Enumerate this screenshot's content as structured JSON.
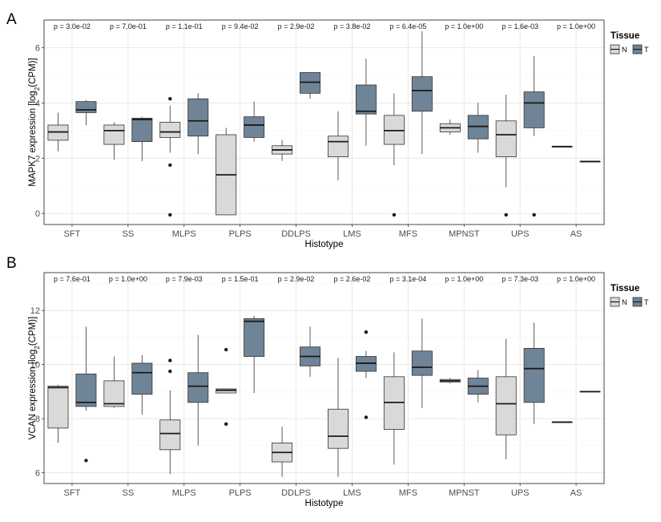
{
  "chart_data": [
    {
      "type": "boxplot",
      "panel_label": "A",
      "xlabel": "Histotype",
      "ylabel": "MAPK7 expression [log2(CPM)]",
      "ylabel_main": "MAPK7 expression [log",
      "ylabel_sub": "2",
      "ylabel_tail": "(CPM)]",
      "ylim": [
        -0.4,
        7.0
      ],
      "yticks": [
        0,
        2,
        4,
        6
      ],
      "ytick_labels": [
        "0",
        "2",
        "4",
        "6"
      ],
      "grid": true,
      "legend": {
        "title": "Tissue",
        "position": "top-right",
        "entries": [
          "N",
          "T"
        ]
      },
      "categories": [
        "SFT",
        "SS",
        "MLPS",
        "PLPS",
        "DDLPS",
        "LMS",
        "MFS",
        "MPNST",
        "UPS",
        "AS"
      ],
      "pvalues": [
        "p = 3.0e-02",
        "p = 7.0e-01",
        "p = 1.1e-01",
        "p = 9.4e-02",
        "p = 2.9e-02",
        "p = 3.8e-02",
        "p = 6.4e-05",
        "p = 1.0e+00",
        "p = 1.6e-03",
        "p = 1.0e+00"
      ],
      "series": [
        {
          "name": "N",
          "color": "#d9d9d9",
          "boxes": [
            {
              "low": 2.25,
              "q1": 2.65,
              "median": 2.95,
              "q3": 3.2,
              "high": 3.65,
              "outliers": []
            },
            {
              "low": 1.95,
              "q1": 2.5,
              "median": 3.0,
              "q3": 3.2,
              "high": 3.3,
              "outliers": []
            },
            {
              "low": 2.2,
              "q1": 2.75,
              "median": 2.95,
              "q3": 3.3,
              "high": 3.9,
              "outliers": [
                4.15,
                1.75,
                -0.05
              ]
            },
            {
              "low": -0.05,
              "q1": -0.05,
              "median": 1.4,
              "q3": 2.85,
              "high": 3.1,
              "outliers": []
            },
            {
              "low": 1.9,
              "q1": 2.15,
              "median": 2.3,
              "q3": 2.45,
              "high": 2.65,
              "outliers": []
            },
            {
              "low": 1.2,
              "q1": 2.05,
              "median": 2.6,
              "q3": 2.8,
              "high": 3.7,
              "outliers": []
            },
            {
              "low": 1.75,
              "q1": 2.5,
              "median": 3.0,
              "q3": 3.55,
              "high": 4.35,
              "outliers": [
                -0.05
              ]
            },
            {
              "low": 2.85,
              "q1": 2.95,
              "median": 3.1,
              "q3": 3.25,
              "high": 3.4,
              "outliers": []
            },
            {
              "low": 0.95,
              "q1": 2.05,
              "median": 2.85,
              "q3": 3.35,
              "high": 4.3,
              "outliers": [
                -0.05
              ]
            },
            {
              "low": 2.42,
              "q1": 2.42,
              "median": 2.42,
              "q3": 2.42,
              "high": 2.42,
              "outliers": []
            }
          ]
        },
        {
          "name": "T",
          "color": "#6f8496",
          "boxes": [
            {
              "low": 3.2,
              "q1": 3.65,
              "median": 3.75,
              "q3": 4.05,
              "high": 4.1,
              "outliers": []
            },
            {
              "low": 1.9,
              "q1": 2.6,
              "median": 3.4,
              "q3": 3.45,
              "high": 3.5,
              "outliers": []
            },
            {
              "low": 2.15,
              "q1": 2.8,
              "median": 3.35,
              "q3": 4.15,
              "high": 4.35,
              "outliers": []
            },
            {
              "low": 2.6,
              "q1": 2.75,
              "median": 3.2,
              "q3": 3.5,
              "high": 4.05,
              "outliers": []
            },
            {
              "low": 4.15,
              "q1": 4.35,
              "median": 4.75,
              "q3": 5.1,
              "high": 5.1,
              "outliers": []
            },
            {
              "low": 2.45,
              "q1": 3.6,
              "median": 3.7,
              "q3": 4.65,
              "high": 5.6,
              "outliers": []
            },
            {
              "low": 2.15,
              "q1": 3.7,
              "median": 4.45,
              "q3": 4.95,
              "high": 6.6,
              "outliers": []
            },
            {
              "low": 2.2,
              "q1": 2.7,
              "median": 3.15,
              "q3": 3.55,
              "high": 4.0,
              "outliers": []
            },
            {
              "low": 2.8,
              "q1": 3.1,
              "median": 4.0,
              "q3": 4.4,
              "high": 5.7,
              "outliers": [
                -0.05
              ]
            },
            {
              "low": 1.88,
              "q1": 1.88,
              "median": 1.88,
              "q3": 1.88,
              "high": 1.88,
              "outliers": []
            }
          ]
        }
      ]
    },
    {
      "type": "boxplot",
      "panel_label": "B",
      "xlabel": "Histotype",
      "ylabel": "VCAN expression [log2(CPM)]",
      "ylabel_main": "VCAN expression [log",
      "ylabel_sub": "2",
      "ylabel_tail": "(CPM)]",
      "ylim": [
        5.6,
        13.4
      ],
      "yticks": [
        6,
        8,
        10,
        12
      ],
      "ytick_labels": [
        "6",
        "8",
        "10",
        "12"
      ],
      "grid": true,
      "legend": {
        "title": "Tissue",
        "position": "top-right",
        "entries": [
          "N",
          "T"
        ]
      },
      "categories": [
        "SFT",
        "SS",
        "MLPS",
        "PLPS",
        "DDLPS",
        "LMS",
        "MFS",
        "MPNST",
        "UPS",
        "AS"
      ],
      "pvalues": [
        "p = 7.6e-01",
        "p = 1.0e+00",
        "p = 7.9e-03",
        "p = 1.5e-01",
        "p = 2.9e-02",
        "p = 2.6e-02",
        "p = 3.1e-04",
        "p = 1.0e+00",
        "p = 7.3e-03",
        "p = 1.0e+00"
      ],
      "series": [
        {
          "name": "N",
          "color": "#d9d9d9",
          "boxes": [
            {
              "low": 7.1,
              "q1": 7.65,
              "median": 9.15,
              "q3": 9.2,
              "high": 9.25,
              "outliers": []
            },
            {
              "low": 8.4,
              "q1": 8.45,
              "median": 8.55,
              "q3": 9.4,
              "high": 10.3,
              "outliers": []
            },
            {
              "low": 5.95,
              "q1": 6.85,
              "median": 7.45,
              "q3": 7.95,
              "high": 9.05,
              "outliers": [
                10.15,
                9.75
              ]
            },
            {
              "low": 8.95,
              "q1": 8.95,
              "median": 9.05,
              "q3": 9.1,
              "high": 9.1,
              "outliers": [
                10.55,
                7.8
              ]
            },
            {
              "low": 5.85,
              "q1": 6.4,
              "median": 6.75,
              "q3": 7.1,
              "high": 7.7,
              "outliers": []
            },
            {
              "low": 5.85,
              "q1": 6.9,
              "median": 7.35,
              "q3": 8.35,
              "high": 10.25,
              "outliers": []
            },
            {
              "low": 6.3,
              "q1": 7.6,
              "median": 8.6,
              "q3": 9.55,
              "high": 10.45,
              "outliers": []
            },
            {
              "low": 9.3,
              "q1": 9.35,
              "median": 9.4,
              "q3": 9.45,
              "high": 9.5,
              "outliers": []
            },
            {
              "low": 6.5,
              "q1": 7.4,
              "median": 8.55,
              "q3": 9.55,
              "high": 10.95,
              "outliers": []
            },
            {
              "low": 7.87,
              "q1": 7.87,
              "median": 7.87,
              "q3": 7.87,
              "high": 7.87,
              "outliers": []
            }
          ]
        },
        {
          "name": "T",
          "color": "#6f8496",
          "boxes": [
            {
              "low": 8.3,
              "q1": 8.45,
              "median": 8.6,
              "q3": 9.65,
              "high": 11.4,
              "outliers": [
                6.45
              ]
            },
            {
              "low": 8.15,
              "q1": 8.9,
              "median": 9.7,
              "q3": 10.05,
              "high": 10.35,
              "outliers": []
            },
            {
              "low": 7.0,
              "q1": 8.6,
              "median": 9.2,
              "q3": 9.7,
              "high": 11.1,
              "outliers": []
            },
            {
              "low": 8.95,
              "q1": 10.3,
              "median": 11.6,
              "q3": 11.7,
              "high": 11.8,
              "outliers": []
            },
            {
              "low": 9.55,
              "q1": 9.95,
              "median": 10.3,
              "q3": 10.65,
              "high": 11.4,
              "outliers": []
            },
            {
              "low": 9.5,
              "q1": 9.75,
              "median": 10.05,
              "q3": 10.3,
              "high": 10.5,
              "outliers": [
                11.2,
                8.05
              ]
            },
            {
              "low": 8.4,
              "q1": 9.6,
              "median": 9.9,
              "q3": 10.5,
              "high": 11.7,
              "outliers": []
            },
            {
              "low": 8.6,
              "q1": 8.9,
              "median": 9.2,
              "q3": 9.5,
              "high": 9.8,
              "outliers": []
            },
            {
              "low": 7.8,
              "q1": 8.6,
              "median": 9.85,
              "q3": 10.6,
              "high": 11.55,
              "outliers": []
            },
            {
              "low": 9.0,
              "q1": 9.0,
              "median": 9.0,
              "q3": 9.0,
              "high": 9.0,
              "outliers": []
            }
          ]
        }
      ]
    }
  ]
}
